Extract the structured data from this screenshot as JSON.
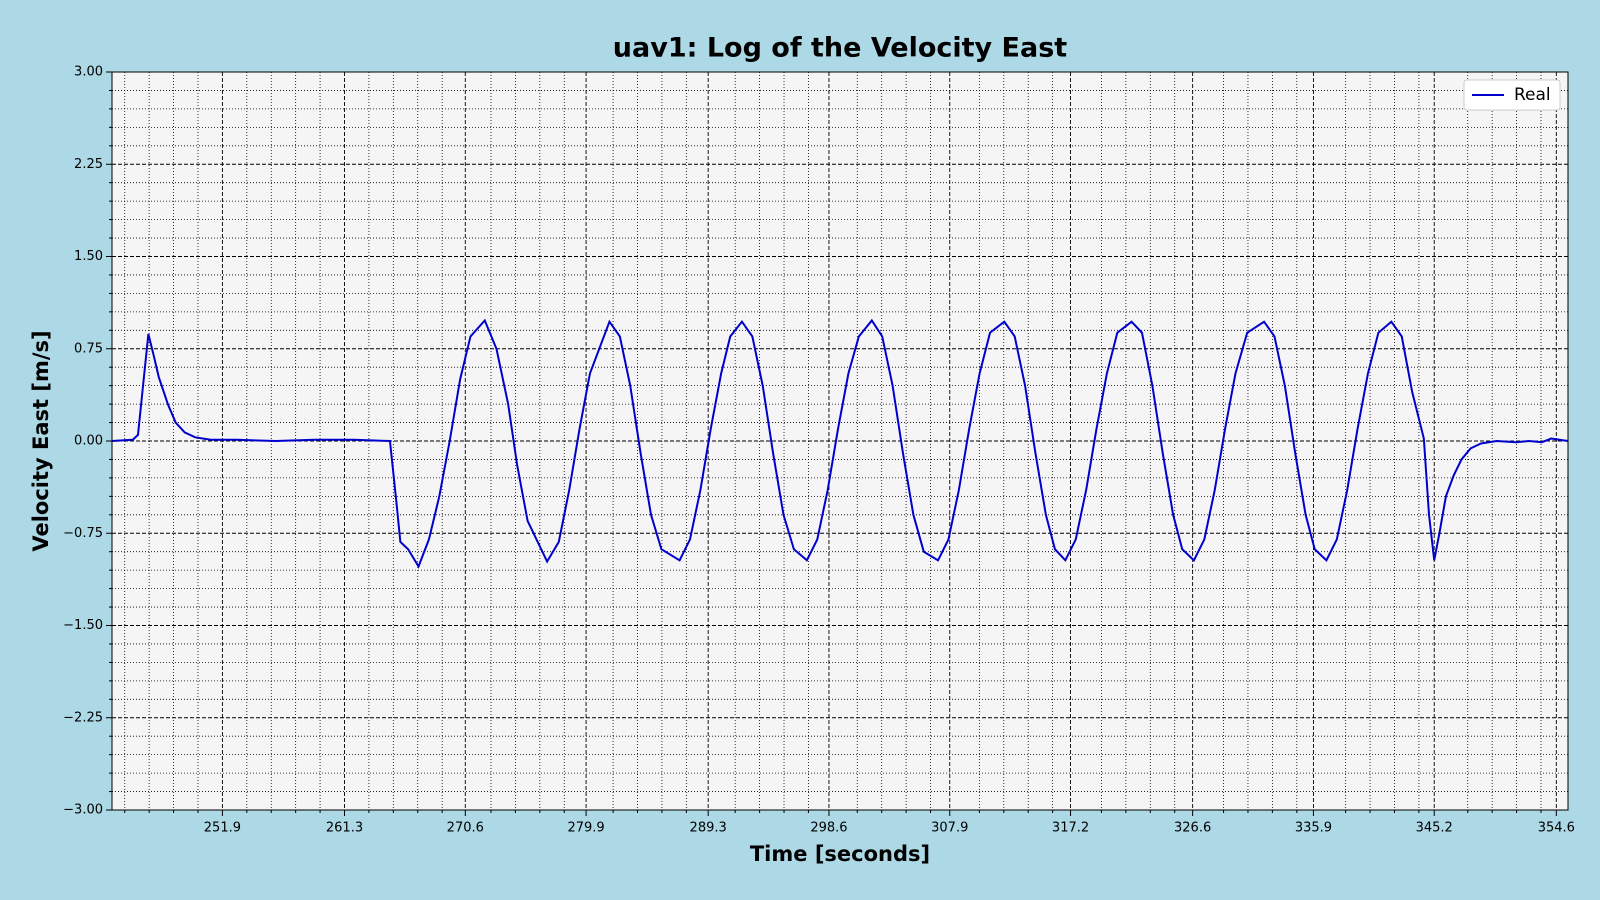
{
  "chart_data": {
    "type": "line",
    "title": "uav1: Log of the Velocity East",
    "x_label": "Time [seconds]",
    "y_label": "Velocity East [m/s]",
    "xlim": [
      243.4,
      355.5
    ],
    "ylim": [
      -3,
      3
    ],
    "xticks": [
      251.9,
      261.3,
      270.6,
      279.9,
      289.3,
      298.6,
      307.9,
      317.2,
      326.6,
      335.9,
      345.2,
      354.6
    ],
    "yticks": [
      {
        "value": -3,
        "label": "−3.00"
      },
      {
        "value": -2.25,
        "label": "−2.25"
      },
      {
        "value": -1.5,
        "label": "−1.50"
      },
      {
        "value": -0.75,
        "label": "−0.75"
      },
      {
        "value": 0,
        "label": "0.00"
      },
      {
        "value": 0.75,
        "label": "0.75"
      },
      {
        "value": 1.5,
        "label": "1.50"
      },
      {
        "value": 2.25,
        "label": "2.25"
      },
      {
        "value": 3,
        "label": "3.00"
      }
    ],
    "grid": true,
    "minor_divisions": 5,
    "legend": "upper right",
    "x": [
      243.4,
      245.0,
      245.4,
      246.2,
      246.6,
      247.0,
      247.7,
      248.3,
      249.0,
      249.8,
      251.0,
      253.0,
      256.0,
      259.0,
      262.0,
      264.8,
      265.3,
      265.6,
      266.2,
      267.0,
      267.8,
      268.6,
      269.4,
      270.2,
      271.0,
      272.1,
      273.0,
      273.9,
      274.6,
      275.4,
      276.9,
      277.8,
      278.6,
      279.4,
      280.2,
      281.7,
      282.5,
      283.3,
      284.1,
      284.9,
      285.7,
      287.1,
      287.9,
      288.7,
      289.5,
      290.3,
      291.0,
      291.9,
      292.7,
      293.5,
      294.3,
      295.1,
      295.9,
      296.9,
      297.7,
      298.5,
      299.3,
      300.1,
      300.9,
      301.9,
      302.7,
      303.5,
      304.3,
      305.1,
      305.9,
      307.0,
      307.8,
      308.6,
      309.4,
      310.2,
      311.0,
      312.1,
      312.9,
      313.7,
      314.5,
      315.3,
      316.0,
      316.8,
      317.6,
      318.4,
      319.2,
      320.0,
      320.8,
      321.9,
      322.7,
      323.5,
      324.3,
      325.1,
      325.8,
      326.7,
      327.5,
      328.3,
      329.1,
      329.9,
      330.8,
      332.1,
      332.9,
      333.7,
      334.5,
      335.3,
      336.0,
      336.9,
      337.7,
      338.5,
      339.3,
      340.1,
      340.9,
      341.9,
      342.7,
      343.5,
      344.4,
      344.8,
      345.2,
      345.6,
      346.1,
      346.7,
      347.3,
      348.0,
      348.8,
      350.0,
      351.5,
      352.5,
      353.5,
      354.2,
      355.5
    ],
    "series": [
      {
        "name": "Real",
        "color": "#0000cd",
        "values": [
          0.0,
          0.01,
          0.05,
          0.87,
          0.7,
          0.52,
          0.3,
          0.15,
          0.07,
          0.03,
          0.01,
          0.01,
          0.0,
          0.01,
          0.01,
          0.0,
          -0.5,
          -0.82,
          -0.88,
          -1.02,
          -0.8,
          -0.45,
          0.0,
          0.5,
          0.85,
          0.98,
          0.75,
          0.3,
          -0.2,
          -0.65,
          -0.98,
          -0.82,
          -0.4,
          0.1,
          0.55,
          0.97,
          0.85,
          0.45,
          -0.1,
          -0.6,
          -0.88,
          -0.97,
          -0.8,
          -0.4,
          0.1,
          0.55,
          0.85,
          0.97,
          0.85,
          0.45,
          -0.1,
          -0.6,
          -0.88,
          -0.97,
          -0.8,
          -0.4,
          0.1,
          0.55,
          0.85,
          0.98,
          0.85,
          0.45,
          -0.1,
          -0.6,
          -0.9,
          -0.97,
          -0.8,
          -0.4,
          0.1,
          0.55,
          0.88,
          0.97,
          0.85,
          0.45,
          -0.1,
          -0.6,
          -0.88,
          -0.97,
          -0.8,
          -0.4,
          0.1,
          0.55,
          0.88,
          0.97,
          0.88,
          0.45,
          -0.1,
          -0.6,
          -0.88,
          -0.97,
          -0.8,
          -0.4,
          0.1,
          0.55,
          0.88,
          0.97,
          0.85,
          0.45,
          -0.1,
          -0.6,
          -0.88,
          -0.97,
          -0.8,
          -0.4,
          0.1,
          0.55,
          0.88,
          0.97,
          0.85,
          0.4,
          0.02,
          -0.6,
          -0.97,
          -0.75,
          -0.45,
          -0.28,
          -0.15,
          -0.06,
          -0.02,
          0.0,
          -0.01,
          0.0,
          -0.01,
          0.02,
          0.0
        ]
      }
    ]
  }
}
